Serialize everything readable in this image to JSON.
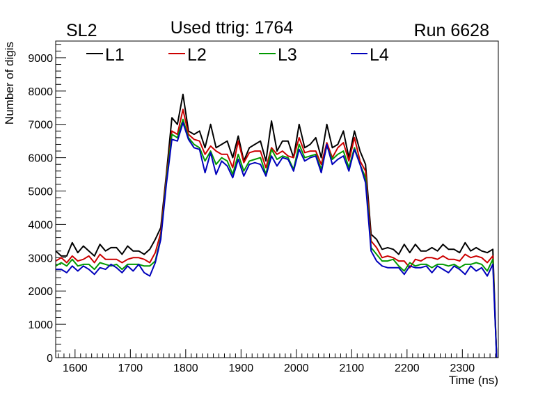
{
  "chart_data": {
    "type": "line",
    "title": "Used ttrig: 1764",
    "top_left_label": "SL2",
    "top_right_label": "Run 6628",
    "xlabel": "Time (ns)",
    "ylabel": "Number of digis",
    "xlim": [
      1565,
      2365
    ],
    "ylim": [
      0,
      9500
    ],
    "xticks": [
      1600,
      1700,
      1800,
      1900,
      2000,
      2100,
      2200,
      2300
    ],
    "xtick_labels": [
      "1600",
      "1700",
      "1800",
      "1900",
      "2000",
      "2100",
      "2200",
      "2300"
    ],
    "yticks": [
      0,
      1000,
      2000,
      3000,
      4000,
      5000,
      6000,
      7000,
      8000,
      9000
    ],
    "ytick_labels": [
      "0",
      "1000",
      "2000",
      "3000",
      "4000",
      "5000",
      "6000",
      "7000",
      "8000",
      "9000"
    ],
    "legend": {
      "placement": "top",
      "entries": [
        {
          "label": "L1",
          "color": "#000000"
        },
        {
          "label": "L2",
          "color": "#cc0000"
        },
        {
          "label": "L3",
          "color": "#009900"
        },
        {
          "label": "L4",
          "color": "#0000bb"
        }
      ]
    },
    "x": [
      1565,
      1575,
      1585,
      1595,
      1605,
      1615,
      1625,
      1635,
      1645,
      1655,
      1665,
      1675,
      1685,
      1695,
      1705,
      1715,
      1725,
      1735,
      1745,
      1755,
      1765,
      1775,
      1785,
      1795,
      1805,
      1815,
      1825,
      1835,
      1845,
      1855,
      1865,
      1875,
      1885,
      1895,
      1905,
      1915,
      1925,
      1935,
      1945,
      1955,
      1965,
      1975,
      1985,
      1995,
      2005,
      2015,
      2025,
      2035,
      2045,
      2055,
      2065,
      2075,
      2085,
      2095,
      2105,
      2115,
      2125,
      2135,
      2145,
      2155,
      2165,
      2175,
      2185,
      2195,
      2205,
      2215,
      2225,
      2235,
      2245,
      2255,
      2265,
      2275,
      2285,
      2295,
      2305,
      2315,
      2325,
      2335,
      2345,
      2355,
      2362
    ],
    "series": [
      {
        "name": "L1",
        "color": "#000000",
        "values": [
          3200,
          3050,
          3050,
          3450,
          3150,
          3350,
          3200,
          3050,
          3400,
          3200,
          3300,
          3300,
          3100,
          3350,
          3200,
          3200,
          3100,
          3250,
          3550,
          3900,
          5500,
          7200,
          7000,
          7900,
          6800,
          6700,
          6800,
          6300,
          7000,
          6300,
          6400,
          6500,
          6000,
          6650,
          5900,
          6300,
          6400,
          6500,
          5900,
          7100,
          6200,
          6500,
          6500,
          6000,
          7000,
          6300,
          6400,
          6600,
          6000,
          7000,
          6300,
          6400,
          6800,
          6000,
          6800,
          6200,
          5800,
          3700,
          3550,
          3250,
          3300,
          3250,
          3100,
          3400,
          3150,
          3400,
          3200,
          3200,
          3300,
          3200,
          3400,
          3250,
          3250,
          3150,
          3450,
          3200,
          3300,
          3200,
          3150,
          3250,
          0
        ]
      },
      {
        "name": "L2",
        "color": "#cc0000",
        "values": [
          2900,
          3000,
          2850,
          3050,
          2900,
          2950,
          3050,
          2850,
          3100,
          2950,
          2950,
          2950,
          2850,
          2950,
          3000,
          3000,
          2950,
          2850,
          3150,
          3750,
          5400,
          6800,
          6700,
          7450,
          6700,
          6550,
          6500,
          6100,
          6350,
          6200,
          6100,
          6100,
          5700,
          6500,
          5850,
          6150,
          6200,
          6200,
          5700,
          6300,
          6100,
          6200,
          6050,
          6000,
          6600,
          6150,
          6200,
          6200,
          5800,
          6450,
          6000,
          6300,
          6450,
          5900,
          6600,
          5900,
          5600,
          3500,
          3300,
          3000,
          3050,
          3000,
          2900,
          2900,
          2700,
          2950,
          2900,
          3000,
          3000,
          2950,
          3050,
          2950,
          2950,
          2900,
          3100,
          3000,
          3050,
          3000,
          2850,
          3050,
          0
        ]
      },
      {
        "name": "L3",
        "color": "#009900",
        "values": [
          2750,
          2850,
          2750,
          2950,
          2750,
          2800,
          2800,
          2650,
          2850,
          2800,
          2750,
          2800,
          2650,
          2800,
          2800,
          2800,
          2750,
          2750,
          2900,
          3600,
          5300,
          6700,
          6600,
          7150,
          6600,
          6400,
          6300,
          5900,
          6200,
          5800,
          6000,
          5900,
          5500,
          6100,
          5600,
          5900,
          5950,
          6000,
          5500,
          6250,
          5950,
          6050,
          6000,
          5650,
          6400,
          6000,
          6050,
          6100,
          5650,
          6350,
          5950,
          6100,
          6200,
          5700,
          6300,
          5800,
          5400,
          3300,
          3100,
          2900,
          2900,
          2950,
          2750,
          2600,
          2850,
          2750,
          2800,
          2800,
          2700,
          2800,
          2800,
          2750,
          2800,
          2700,
          2800,
          2800,
          2850,
          2800,
          2600,
          2950,
          0
        ]
      },
      {
        "name": "L4",
        "color": "#0000bb",
        "values": [
          2650,
          2650,
          2550,
          2750,
          2600,
          2750,
          2650,
          2500,
          2700,
          2650,
          2800,
          2700,
          2550,
          2750,
          2600,
          2800,
          2550,
          2450,
          2850,
          3550,
          5200,
          6550,
          6500,
          7050,
          6550,
          6300,
          6250,
          5550,
          6150,
          5500,
          5900,
          5750,
          5400,
          5950,
          5450,
          5800,
          5850,
          5800,
          5450,
          6050,
          5750,
          6000,
          5950,
          5600,
          6250,
          5900,
          6000,
          6050,
          5550,
          6400,
          5800,
          5950,
          6050,
          5600,
          6250,
          5800,
          5250,
          3200,
          2900,
          2750,
          2700,
          2700,
          2700,
          2500,
          2750,
          2700,
          2700,
          2750,
          2550,
          2750,
          2650,
          2550,
          2750,
          2650,
          2500,
          2750,
          2600,
          2700,
          2450,
          2800,
          0
        ]
      }
    ]
  }
}
